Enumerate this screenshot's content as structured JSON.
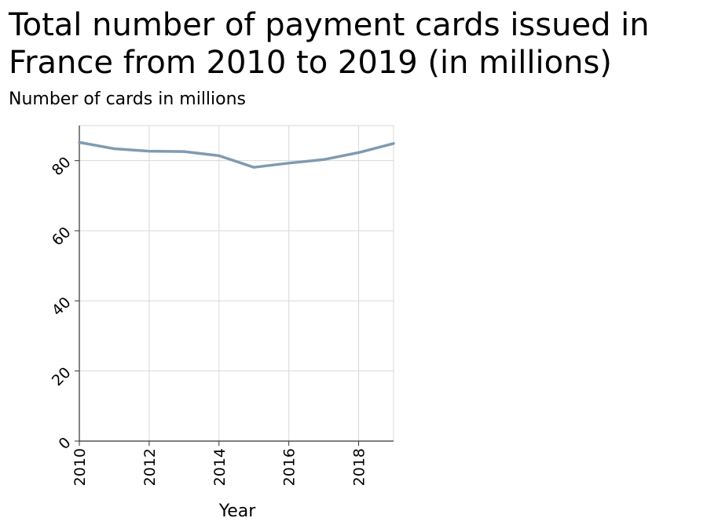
{
  "chart_data": {
    "type": "line",
    "title": "Total number of payment cards issued in France from 2010 to 2019 (in millions)",
    "xlabel": "Year",
    "ylabel": "Number of cards in millions",
    "xlim": [
      2010,
      2019
    ],
    "ylim": [
      0,
      90
    ],
    "x_ticks": [
      2010,
      2012,
      2014,
      2016,
      2018
    ],
    "y_ticks": [
      0,
      20,
      40,
      60,
      80
    ],
    "grid": true,
    "series": [
      {
        "x": [
          2010,
          2011,
          2012,
          2013,
          2014,
          2015,
          2016,
          2017,
          2018,
          2019
        ],
        "values": [
          85.2,
          83.4,
          82.7,
          82.6,
          81.4,
          78.1,
          79.3,
          80.3,
          82.3,
          84.9
        ]
      }
    ],
    "colors": {
      "line": "#7f9bb0",
      "grid": "#d9d9d9",
      "axis": "#333333"
    }
  }
}
